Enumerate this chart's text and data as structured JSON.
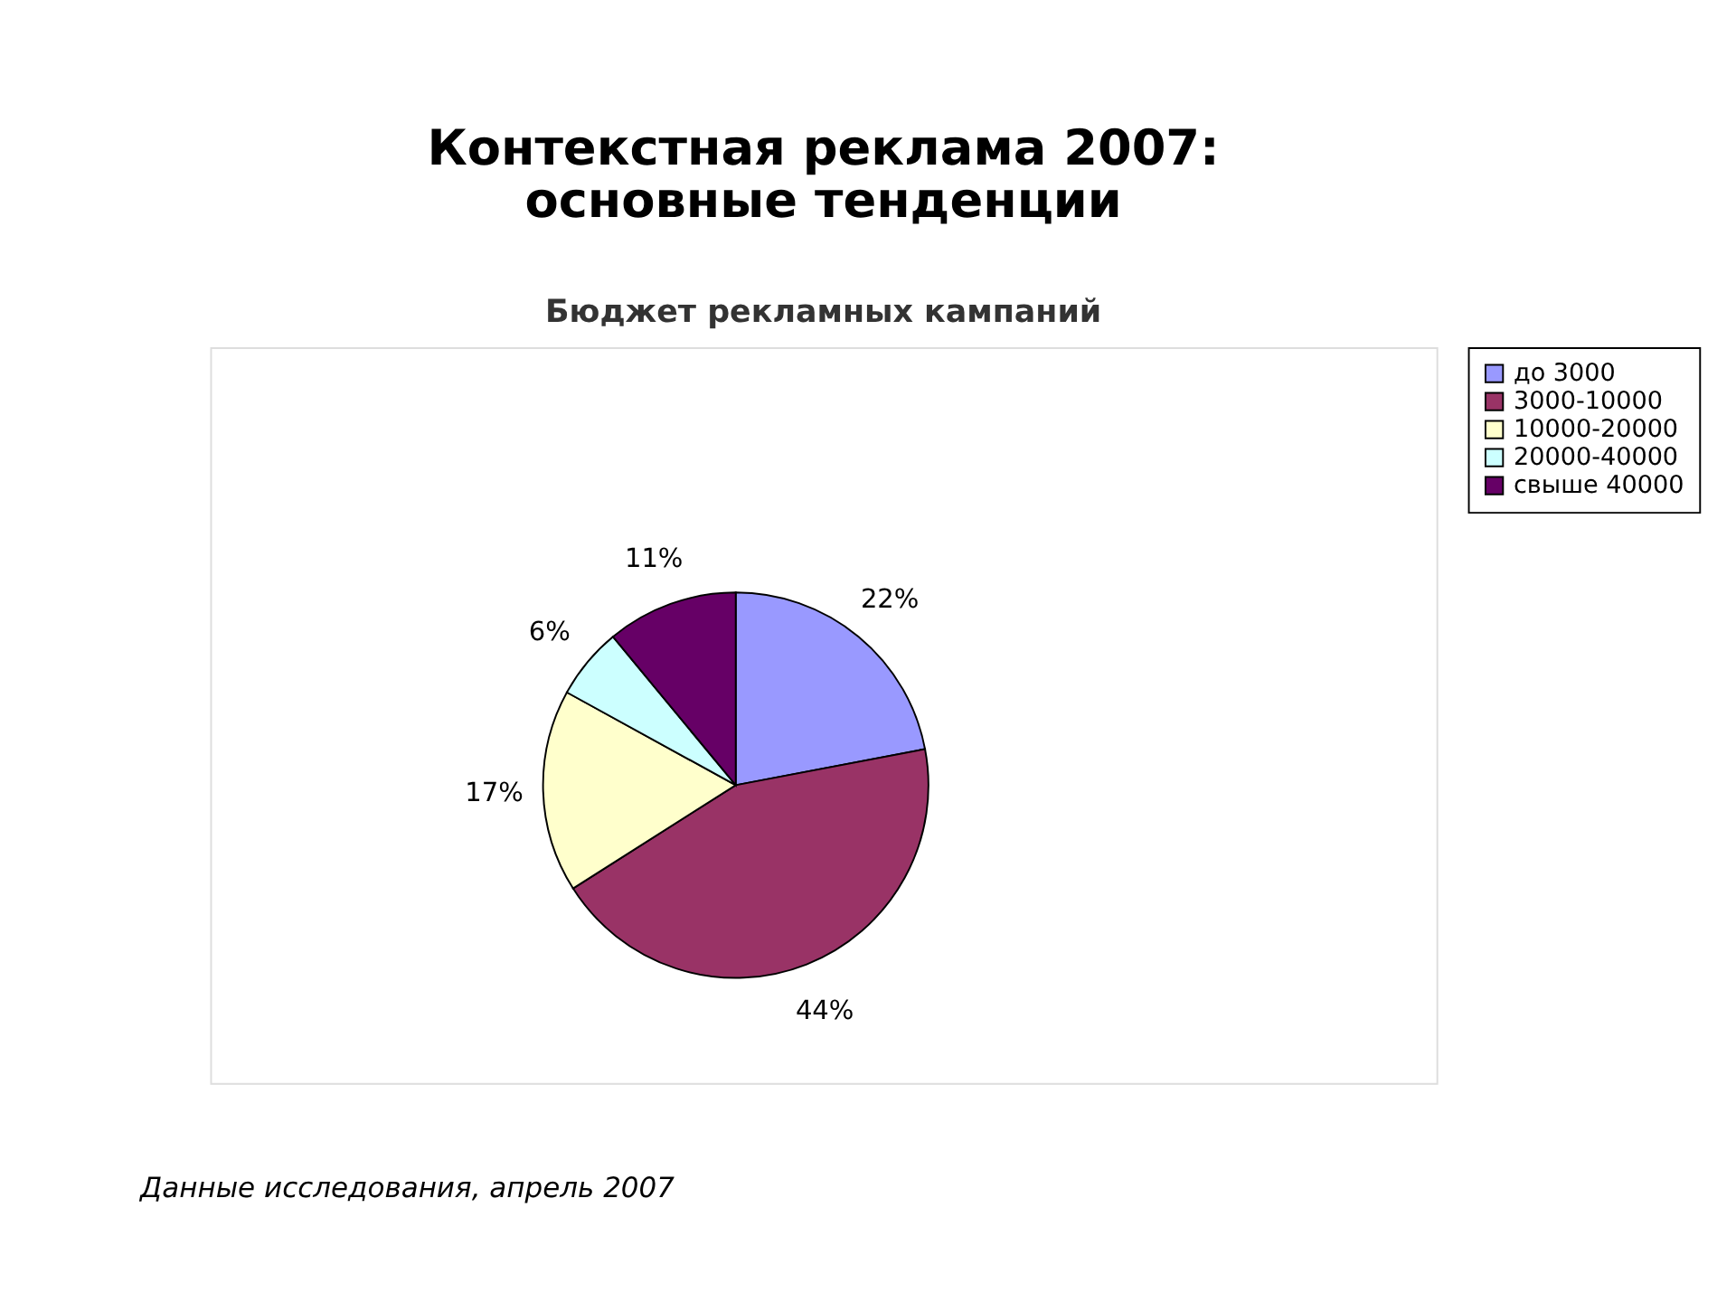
{
  "chart_data": {
    "type": "pie",
    "title": [
      "Контекстная реклама 2007:",
      "основные тенденции"
    ],
    "subtitle": "Бюджет рекламных кампаний",
    "categories": [
      "до 3000",
      "3000-10000",
      "10000-20000",
      "20000-40000",
      "свыше 40000"
    ],
    "values": [
      22,
      44,
      17,
      6,
      11
    ],
    "colors": [
      "#9999ff",
      "#993366",
      "#ffffcc",
      "#ccffff",
      "#660066"
    ],
    "value_labels": [
      "22%",
      "44%",
      "17%",
      "6%",
      "11%"
    ],
    "legend": "right",
    "annotations": [
      "Данные исследования, апрель 2007"
    ]
  }
}
